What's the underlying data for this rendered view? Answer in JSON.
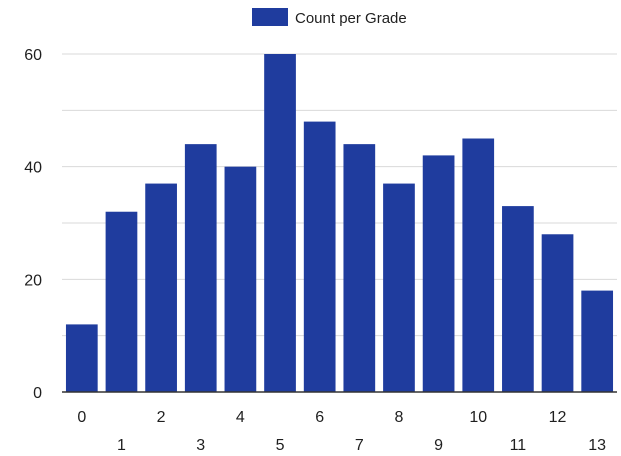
{
  "chart_data": {
    "type": "bar",
    "categories": [
      "0",
      "1",
      "2",
      "3",
      "4",
      "5",
      "6",
      "7",
      "8",
      "9",
      "10",
      "11",
      "12",
      "13"
    ],
    "series": [
      {
        "name": "Count per Grade",
        "values": [
          12,
          32,
          37,
          44,
          40,
          60,
          48,
          44,
          37,
          42,
          45,
          33,
          28,
          18
        ]
      }
    ],
    "title": "",
    "xlabel": "",
    "ylabel": "",
    "ylim": [
      0,
      60
    ],
    "yticks": [
      "0",
      "20",
      "40",
      "60"
    ],
    "grid": true,
    "legend_position": "top-center"
  },
  "colors": {
    "bar": "#1f3c9e",
    "grid": "#d9d9d9",
    "axis": "#333333"
  }
}
